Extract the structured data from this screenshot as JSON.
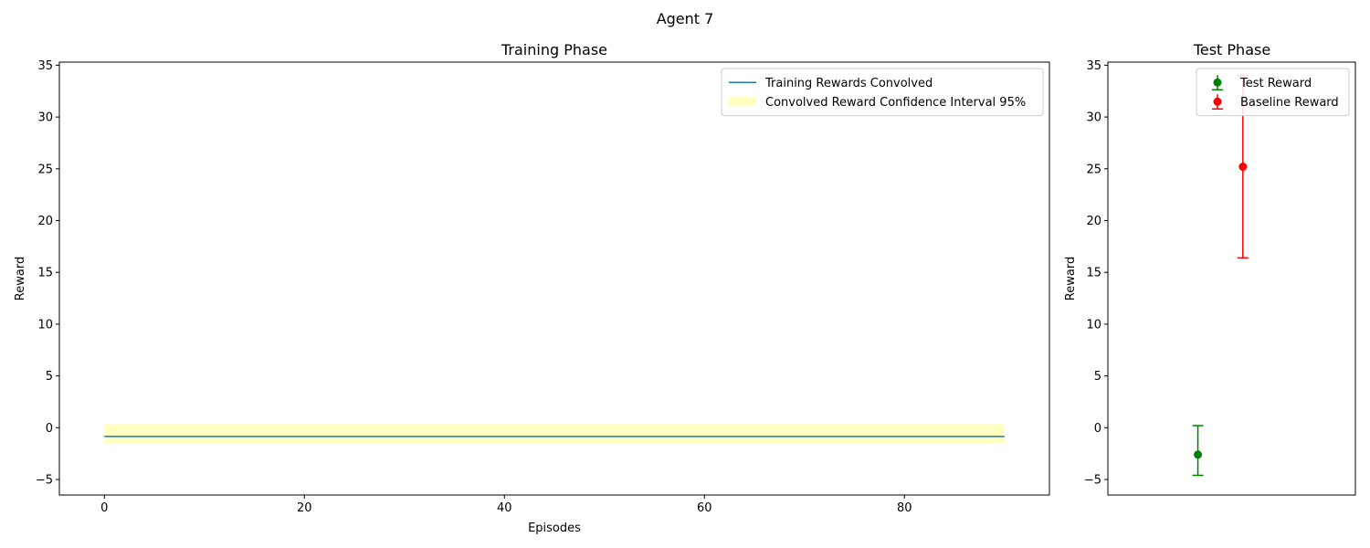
{
  "figure": {
    "suptitle": "Agent 7"
  },
  "chart_data": [
    {
      "type": "line",
      "title": "Training Phase",
      "xlabel": "Episodes",
      "ylabel": "Reward",
      "xlim": [
        -4.5,
        94.5
      ],
      "ylim": [
        -6.5,
        35.3
      ],
      "xticks": [
        0,
        20,
        40,
        60,
        80
      ],
      "yticks": [
        -5,
        0,
        5,
        10,
        15,
        20,
        25,
        30,
        35
      ],
      "grid": false,
      "legend_position": "upper right",
      "series": [
        {
          "name": "Training Rewards Convolved",
          "kind": "line",
          "color": "#1f77b4",
          "x": [
            0,
            90
          ],
          "y": [
            -0.85,
            -0.85
          ]
        },
        {
          "name": "Convolved Reward Confidence Interval 95%",
          "kind": "band",
          "color": "#ffffc0",
          "x": [
            0,
            90
          ],
          "lower": [
            -1.5,
            -1.5
          ],
          "upper": [
            0.35,
            0.35
          ]
        }
      ]
    },
    {
      "type": "scatter",
      "title": "Test Phase",
      "xlabel": "",
      "ylabel": "Reward",
      "xlim": [
        -1.0,
        4.5
      ],
      "ylim": [
        -6.5,
        35.3
      ],
      "xticks": [],
      "yticks": [
        -5,
        0,
        5,
        10,
        15,
        20,
        25,
        30,
        35
      ],
      "grid": false,
      "legend_position": "upper right",
      "series": [
        {
          "name": "Test Reward",
          "kind": "errorbar",
          "color": "#008000",
          "x": [
            1.0
          ],
          "y": [
            -2.6
          ],
          "yerr_low": [
            -4.6
          ],
          "yerr_high": [
            0.2
          ]
        },
        {
          "name": "Baseline Reward",
          "kind": "errorbar",
          "color": "#ff0000",
          "x": [
            2.0
          ],
          "y": [
            25.2
          ],
          "yerr_low": [
            16.4
          ],
          "yerr_high": [
            34.0
          ]
        }
      ]
    }
  ]
}
